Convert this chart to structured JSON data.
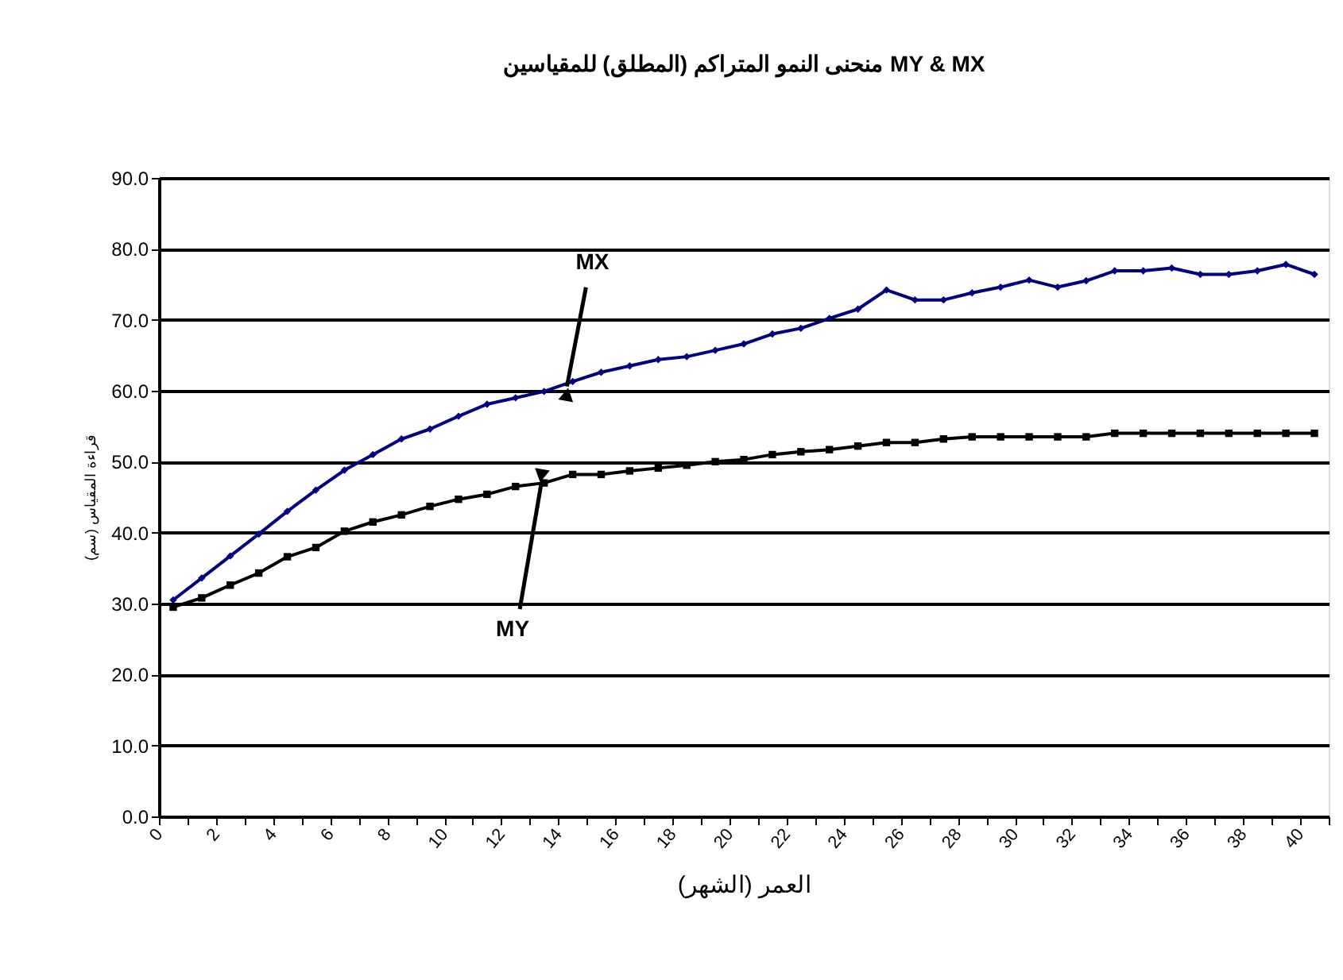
{
  "chart_data": {
    "type": "line",
    "title": "منحنى النمو المتراكم (المطلق) للمقياسين MY & MX",
    "xlabel": "العمر (الشهر)",
    "ylabel": "قراءة المقياس (سم)",
    "x": [
      0.5,
      1.5,
      2.5,
      3.5,
      4.5,
      5.5,
      6.5,
      7.5,
      8.5,
      9.5,
      10.5,
      11.5,
      12.5,
      13.5,
      14.5,
      15.5,
      16.5,
      17.5,
      18.5,
      19.5,
      20.5,
      21.5,
      22.5,
      23.5,
      24.5,
      25.5,
      26.5,
      27.5,
      28.5,
      29.5,
      30.5,
      31.5,
      32.5,
      33.5,
      34.5,
      35.5,
      36.5,
      37.5,
      38.5,
      39.5,
      40.5
    ],
    "series": [
      {
        "color": "#000080",
        "marker": "diamond",
        "values": [
          30.5,
          33.6,
          36.7,
          39.8,
          43.0,
          46.0,
          48.8,
          51.0,
          53.2,
          54.6,
          56.4,
          58.1,
          59.0,
          59.9,
          61.3,
          62.6,
          63.5,
          64.4,
          64.8,
          65.7,
          66.6,
          68.0,
          68.8,
          70.2,
          71.5,
          74.2,
          72.8,
          72.8,
          73.8,
          74.6,
          75.6,
          74.6,
          75.5,
          76.9,
          76.9,
          77.3,
          76.4,
          76.4,
          76.9,
          77.8,
          76.4
        ]
      },
      {
        "color": "#000000",
        "marker": "square",
        "values": [
          29.5,
          30.8,
          32.6,
          34.3,
          36.6,
          37.9,
          40.2,
          41.5,
          42.5,
          43.7,
          44.7,
          45.4,
          46.5,
          47.0,
          48.2,
          48.2,
          48.7,
          49.1,
          49.5,
          50.0,
          50.3,
          51.0,
          51.4,
          51.7,
          52.2,
          52.7,
          52.7,
          53.2,
          53.5,
          53.5,
          53.5,
          53.5,
          53.5,
          54.0,
          54.0,
          54.0,
          54.0,
          54.0,
          54.0,
          54.0,
          54.0
        ]
      }
    ],
    "xlim": [
      0,
      41
    ],
    "xticks": [
      0,
      {
        "value": 1,
        "label": null
      },
      2,
      {
        "value": 3,
        "label": null
      },
      4,
      {
        "value": 5,
        "label": null
      },
      6,
      {
        "value": 7,
        "label": null
      },
      8,
      {
        "value": 9,
        "label": null
      },
      10,
      {
        "value": 11,
        "label": null
      },
      12,
      {
        "value": 13,
        "label": null
      },
      14,
      {
        "value": 15,
        "label": null
      },
      16,
      {
        "value": 17,
        "label": null
      },
      18,
      {
        "value": 19,
        "label": null
      },
      20,
      {
        "value": 21,
        "label": null
      },
      22,
      {
        "value": 23,
        "label": null
      },
      24,
      {
        "value": 25,
        "label": null
      },
      26,
      {
        "value": 27,
        "label": null
      },
      28,
      {
        "value": 29,
        "label": null
      },
      30,
      {
        "value": 31,
        "label": null
      },
      32,
      {
        "value": 33,
        "label": null
      },
      34,
      {
        "value": 35,
        "label": null
      },
      36,
      {
        "value": 37,
        "label": null
      },
      38,
      {
        "value": 39,
        "label": null
      },
      40,
      {
        "value": 41,
        "label": null
      }
    ],
    "ylim": [
      0,
      90
    ],
    "yticks": [
      {
        "value": 0,
        "label": "0.0"
      },
      {
        "value": 10,
        "label": "10.0"
      },
      {
        "value": 20,
        "label": "20.0"
      },
      {
        "value": 30,
        "label": "30.0"
      },
      {
        "value": 40,
        "label": "40.0"
      },
      {
        "value": 50,
        "label": "50.0"
      },
      {
        "value": 60,
        "label": "60.0"
      },
      {
        "value": 70,
        "label": "70.0"
      },
      {
        "value": 80,
        "label": "80.0"
      },
      {
        "value": 90,
        "label": "90.0"
      }
    ],
    "grid": "y",
    "line_style": "solid",
    "annotations": [
      {
        "text": "MX",
        "x": 14.3,
        "y": 60.6
      },
      {
        "text": "MY",
        "x": 13.4,
        "y": 46.9
      }
    ]
  }
}
